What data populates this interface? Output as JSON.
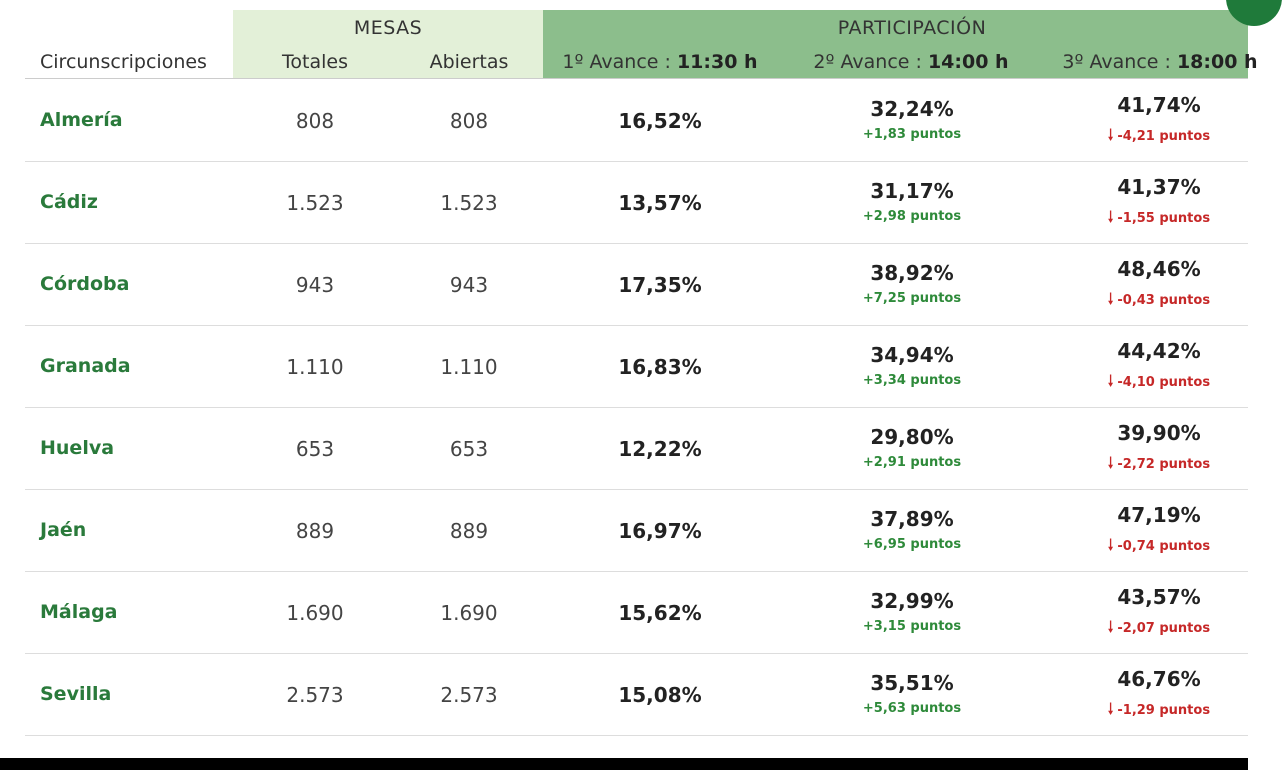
{
  "header": {
    "mesas": "MESAS",
    "participacion": "PARTICIPACIÓN",
    "circunscripciones": "Circunscripciones",
    "totales": "Totales",
    "abiertas": "Abiertas",
    "avance1_prefix": "1º Avance : ",
    "avance1_time": "11:30 h",
    "avance2_prefix": "2º Avance : ",
    "avance2_time": "14:00 h",
    "avance3_prefix": "3º Avance : ",
    "avance3_time": "18:00 h"
  },
  "colors": {
    "mesas_band": "#e3f0d8",
    "participacion_band": "#8cbe8c",
    "province_green": "#2a7a3b",
    "positive_green": "#2e8a3a",
    "negative_red": "#c62828"
  },
  "icons": {
    "decrease": "arrow-down-icon"
  },
  "rows": [
    {
      "name": "Almería",
      "totales": "808",
      "abiertas": "808",
      "p1": "16,52%",
      "p2": "32,24%",
      "d2": "+1,83 puntos",
      "p3": "41,74%",
      "d3": "-4,21 puntos"
    },
    {
      "name": "Cádiz",
      "totales": "1.523",
      "abiertas": "1.523",
      "p1": "13,57%",
      "p2": "31,17%",
      "d2": "+2,98 puntos",
      "p3": "41,37%",
      "d3": "-1,55 puntos"
    },
    {
      "name": "Córdoba",
      "totales": "943",
      "abiertas": "943",
      "p1": "17,35%",
      "p2": "38,92%",
      "d2": "+7,25 puntos",
      "p3": "48,46%",
      "d3": "-0,43 puntos"
    },
    {
      "name": "Granada",
      "totales": "1.110",
      "abiertas": "1.110",
      "p1": "16,83%",
      "p2": "34,94%",
      "d2": "+3,34 puntos",
      "p3": "44,42%",
      "d3": "-4,10 puntos"
    },
    {
      "name": "Huelva",
      "totales": "653",
      "abiertas": "653",
      "p1": "12,22%",
      "p2": "29,80%",
      "d2": "+2,91 puntos",
      "p3": "39,90%",
      "d3": "-2,72 puntos"
    },
    {
      "name": "Jaén",
      "totales": "889",
      "abiertas": "889",
      "p1": "16,97%",
      "p2": "37,89%",
      "d2": "+6,95 puntos",
      "p3": "47,19%",
      "d3": "-0,74 puntos"
    },
    {
      "name": "Málaga",
      "totales": "1.690",
      "abiertas": "1.690",
      "p1": "15,62%",
      "p2": "32,99%",
      "d2": "+3,15 puntos",
      "p3": "43,57%",
      "d3": "-2,07 puntos"
    },
    {
      "name": "Sevilla",
      "totales": "2.573",
      "abiertas": "2.573",
      "p1": "15,08%",
      "p2": "35,51%",
      "d2": "+5,63 puntos",
      "p3": "46,76%",
      "d3": "-1,29 puntos"
    }
  ]
}
